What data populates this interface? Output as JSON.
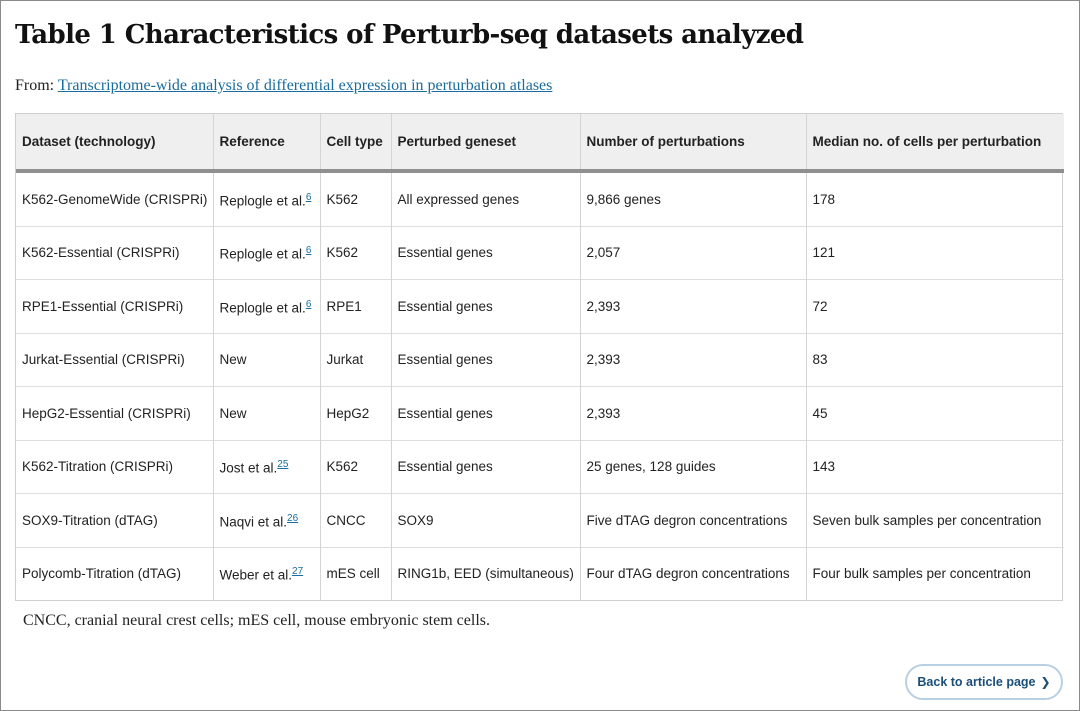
{
  "title": "Table 1 Characteristics of Perturb-seq datasets analyzed",
  "from_label": "From:",
  "source_link": "Transcriptome-wide analysis of differential expression in perturbation atlases",
  "columns": [
    "Dataset (technology)",
    "Reference",
    "Cell type",
    "Perturbed geneset",
    "Number of perturbations",
    "Median no. of cells per perturbation"
  ],
  "rows": [
    {
      "dataset": "K562-GenomeWide (CRISPRi)",
      "reference": "Replogle et al.",
      "ref_num": "6",
      "cell_type": "K562",
      "geneset": "All expressed genes",
      "perturbations": "9,866 genes",
      "median_cells": "178"
    },
    {
      "dataset": "K562-Essential (CRISPRi)",
      "reference": "Replogle et al.",
      "ref_num": "6",
      "cell_type": "K562",
      "geneset": "Essential genes",
      "perturbations": "2,057",
      "median_cells": "121"
    },
    {
      "dataset": "RPE1-Essential (CRISPRi)",
      "reference": "Replogle et al.",
      "ref_num": "6",
      "cell_type": "RPE1",
      "geneset": "Essential genes",
      "perturbations": "2,393",
      "median_cells": "72"
    },
    {
      "dataset": "Jurkat-Essential (CRISPRi)",
      "reference": "New",
      "ref_num": "",
      "cell_type": "Jurkat",
      "geneset": "Essential genes",
      "perturbations": "2,393",
      "median_cells": "83"
    },
    {
      "dataset": "HepG2-Essential (CRISPRi)",
      "reference": "New",
      "ref_num": "",
      "cell_type": "HepG2",
      "geneset": "Essential genes",
      "perturbations": "2,393",
      "median_cells": "45"
    },
    {
      "dataset": "K562-Titration (CRISPRi)",
      "reference": "Jost et al.",
      "ref_num": "25",
      "cell_type": "K562",
      "geneset": "Essential genes",
      "perturbations": "25 genes, 128 guides",
      "median_cells": "143"
    },
    {
      "dataset": "SOX9-Titration (dTAG)",
      "reference": "Naqvi et al.",
      "ref_num": "26",
      "cell_type": "CNCC",
      "geneset": "SOX9",
      "perturbations": "Five dTAG degron concentrations",
      "median_cells": "Seven bulk samples per concentration"
    },
    {
      "dataset": "Polycomb-Titration (dTAG)",
      "reference": "Weber et al.",
      "ref_num": "27",
      "cell_type": "mES cell",
      "geneset": "RING1b, EED (simultaneous)",
      "perturbations": "Four dTAG degron concentrations",
      "median_cells": "Four bulk samples per concentration"
    }
  ],
  "footnote": "CNCC, cranial neural crest cells; mES cell, mouse embryonic stem cells.",
  "back_button": {
    "label": "Back to article page",
    "icon": "chevron-right-icon"
  }
}
